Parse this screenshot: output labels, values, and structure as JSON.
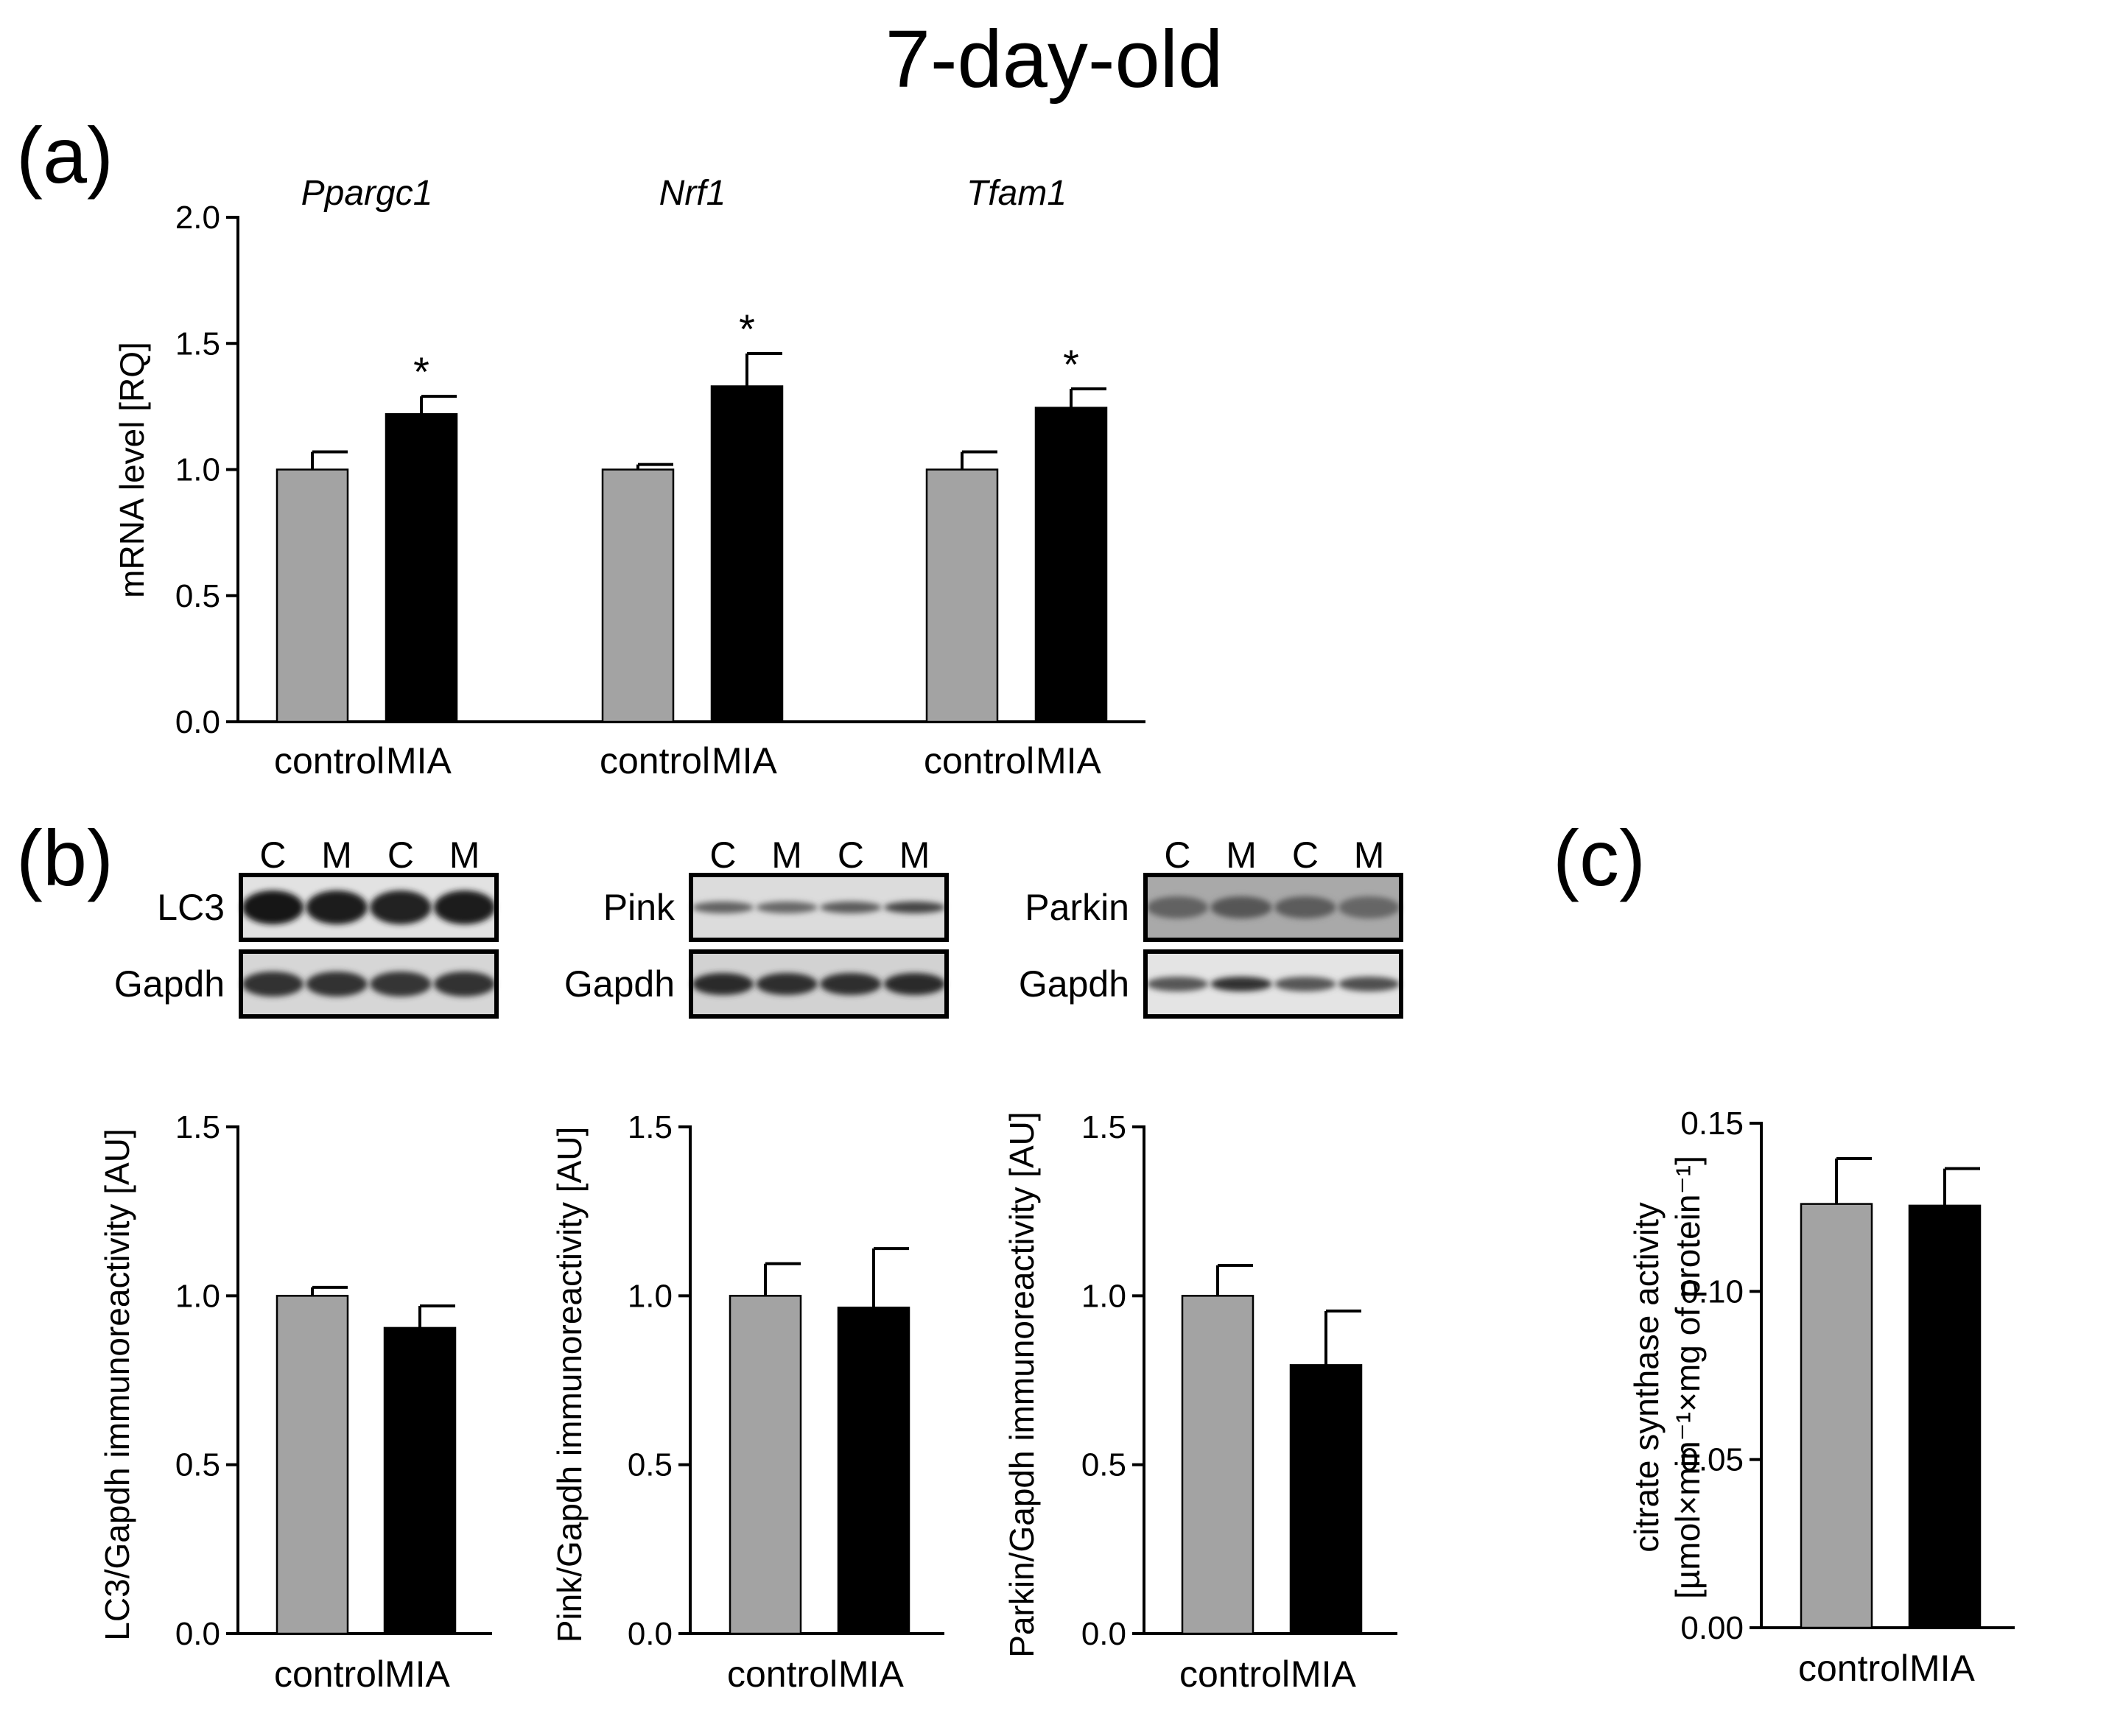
{
  "figure_title": "7-day-old",
  "panel_labels": {
    "a": "(a)",
    "b": "(b)",
    "c": "(c)"
  },
  "colors": {
    "control": "#a3a3a3",
    "mia": "#000000"
  },
  "blots": [
    {
      "protein": "LC3",
      "loading": "Gapdh",
      "lanes": [
        "C",
        "M",
        "C",
        "M"
      ]
    },
    {
      "protein": "Pink",
      "loading": "Gapdh",
      "lanes": [
        "C",
        "M",
        "C",
        "M"
      ]
    },
    {
      "protein": "Parkin",
      "loading": "Gapdh",
      "lanes": [
        "C",
        "M",
        "C",
        "M"
      ]
    }
  ],
  "chart_data": [
    {
      "id": "a",
      "type": "bar",
      "ylabel": "mRNA level [RQ]",
      "ylim": [
        0,
        2.0
      ],
      "yticks": [
        "0.0",
        "0.5",
        "1.0",
        "1.5",
        "2.0"
      ],
      "groups": [
        {
          "name": "Ppargc1",
          "categories": [
            "control",
            "MIA"
          ],
          "values": [
            1.0,
            1.22
          ],
          "errors": [
            0.07,
            0.07
          ],
          "significance": [
            "",
            "*"
          ]
        },
        {
          "name": "Nrf1",
          "categories": [
            "control",
            "MIA"
          ],
          "values": [
            1.0,
            1.33
          ],
          "errors": [
            0.02,
            0.13
          ],
          "significance": [
            "",
            "*"
          ]
        },
        {
          "name": "Tfam1",
          "categories": [
            "control",
            "MIA"
          ],
          "values": [
            1.0,
            1.245
          ],
          "errors": [
            0.07,
            0.075
          ],
          "significance": [
            "",
            "*"
          ]
        }
      ]
    },
    {
      "id": "b1",
      "type": "bar",
      "ylabel": "LC3/Gapdh immunoreactivity [AU]",
      "ylim": [
        0,
        1.5
      ],
      "yticks": [
        "0.0",
        "0.5",
        "1.0",
        "1.5"
      ],
      "categories": [
        "control",
        "MIA"
      ],
      "values": [
        1.0,
        0.905
      ],
      "errors": [
        0.025,
        0.065
      ]
    },
    {
      "id": "b2",
      "type": "bar",
      "ylabel": "Pink/Gapdh immunoreactivity [AU]",
      "ylim": [
        0,
        1.5
      ],
      "yticks": [
        "0.0",
        "0.5",
        "1.0",
        "1.5"
      ],
      "categories": [
        "control",
        "MIA"
      ],
      "values": [
        1.0,
        0.965
      ],
      "errors": [
        0.095,
        0.175
      ]
    },
    {
      "id": "b3",
      "type": "bar",
      "ylabel": "Parkin/Gapdh immunoreactivity [AU]",
      "ylim": [
        0,
        1.5
      ],
      "yticks": [
        "0.0",
        "0.5",
        "1.0",
        "1.5"
      ],
      "categories": [
        "control",
        "MIA"
      ],
      "values": [
        1.0,
        0.795
      ],
      "errors": [
        0.09,
        0.16
      ]
    },
    {
      "id": "c",
      "type": "bar",
      "ylabel_line1": "citrate synthase activity",
      "ylabel_line2": "[µmol×min⁻¹×mg of protein⁻¹]",
      "ylim": [
        0,
        0.15
      ],
      "yticks": [
        "0.00",
        "0.05",
        "0.10",
        "0.15"
      ],
      "categories": [
        "control",
        "MIA"
      ],
      "values": [
        0.126,
        0.1255
      ],
      "errors": [
        0.0135,
        0.011
      ]
    }
  ]
}
